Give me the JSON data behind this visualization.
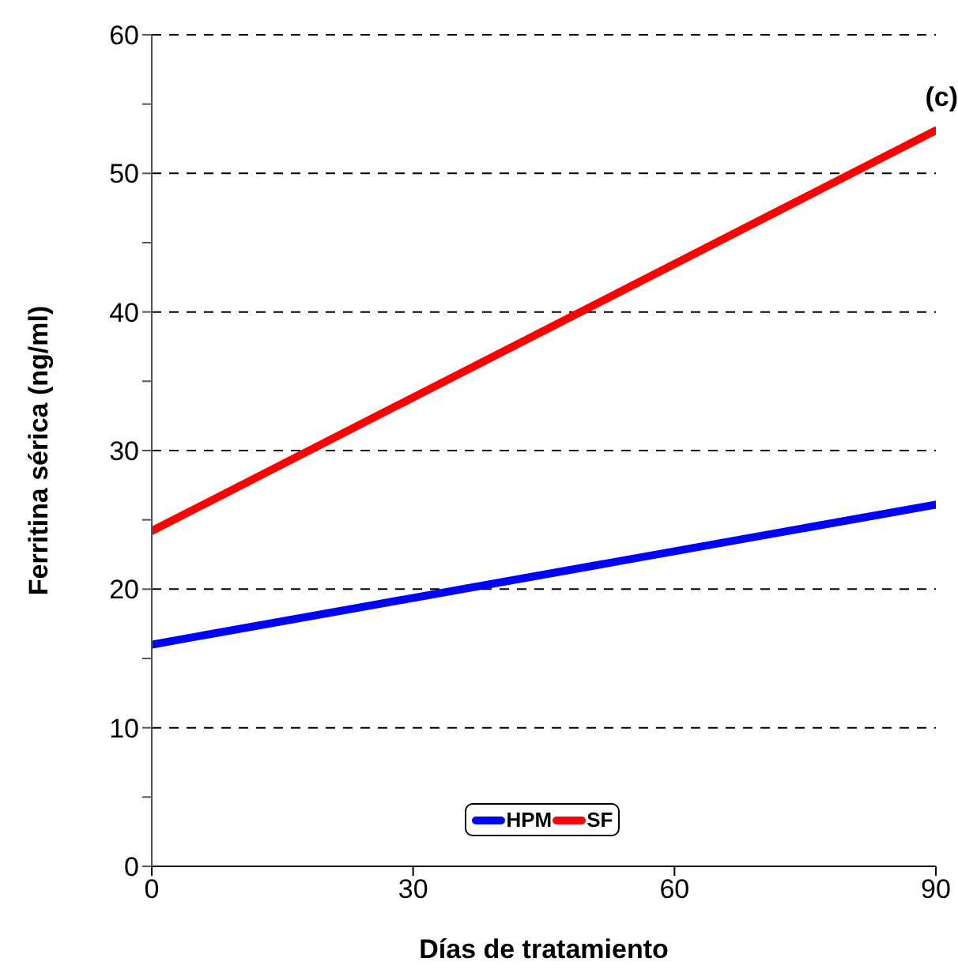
{
  "chart_data": {
    "type": "line",
    "xlabel": "Días de tratamiento",
    "ylabel": "Ferritina sérica (ng/ml)",
    "annotations": [
      "(c)"
    ],
    "x": [
      0,
      90
    ],
    "series": [
      {
        "name": "HPM",
        "color": "#0000ff",
        "values": [
          16,
          26.1
        ]
      },
      {
        "name": "SF",
        "color": "#ff0000",
        "values": [
          24.2,
          53.1
        ]
      }
    ],
    "xlim": [
      0,
      90
    ],
    "xticks": [
      0,
      30,
      60,
      90
    ],
    "ylim": [
      0,
      60
    ],
    "yticks": [
      0,
      {
        "value": 5,
        "label": null
      },
      10,
      {
        "value": 15,
        "label": null
      },
      20,
      {
        "value": 25,
        "label": null
      },
      30,
      {
        "value": 35,
        "label": null
      },
      40,
      {
        "value": 45,
        "label": null
      },
      50,
      {
        "value": 55,
        "label": null
      },
      60
    ],
    "grid": "y",
    "legend": "bottom",
    "marker": "none",
    "line_style": "solid"
  }
}
